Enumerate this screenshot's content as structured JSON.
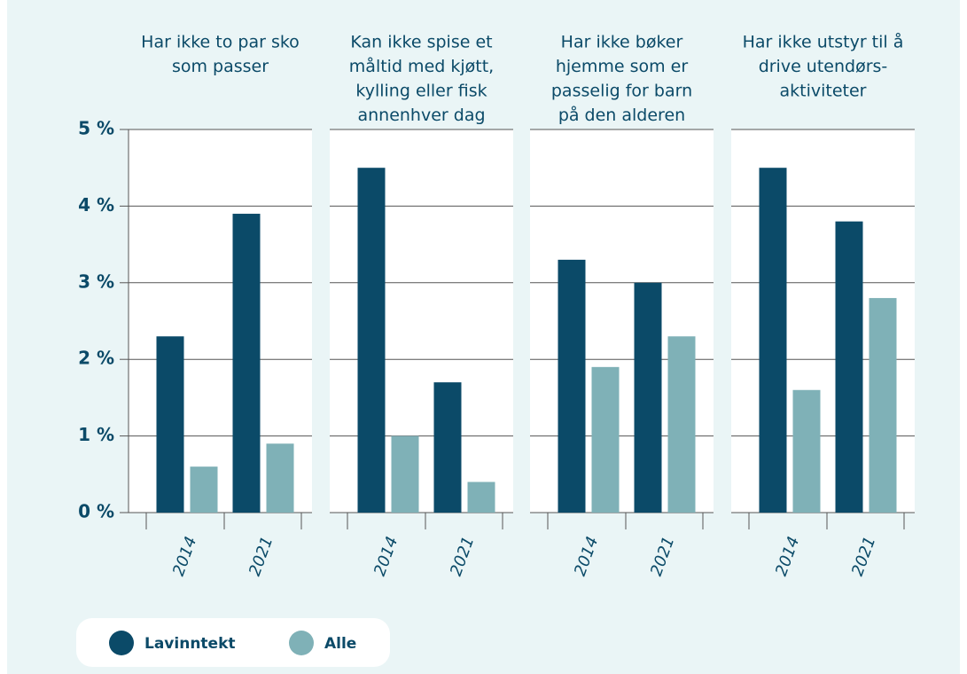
{
  "chart_data": [
    {
      "type": "bar",
      "title": [
        "Har ikke to par sko",
        "som passer"
      ],
      "categories": [
        "2014",
        "2021"
      ],
      "series": [
        {
          "name": "Lavinntekt",
          "color": "#0b4a68",
          "values": [
            2.3,
            3.9
          ]
        },
        {
          "name": "Alle",
          "color": "#7fb1b7",
          "values": [
            0.6,
            0.9
          ]
        }
      ],
      "ylim": [
        0,
        5
      ],
      "yticks": [
        {
          "value": 0,
          "label": "0 %"
        },
        {
          "value": 1,
          "label": "1 %"
        },
        {
          "value": 2,
          "label": "2 %"
        },
        {
          "value": 3,
          "label": "3 %"
        },
        {
          "value": 4,
          "label": "4 %"
        },
        {
          "value": 5,
          "label": "5 %"
        }
      ],
      "grid": true,
      "legend": "bottom"
    },
    {
      "type": "bar",
      "title": [
        "Kan ikke spise et",
        "måltid med kjøtt,",
        "kylling eller fisk",
        "annenhver dag"
      ],
      "categories": [
        "2014",
        "2021"
      ],
      "series": [
        {
          "name": "Lavinntekt",
          "color": "#0b4a68",
          "values": [
            4.5,
            1.7
          ]
        },
        {
          "name": "Alle",
          "color": "#7fb1b7",
          "values": [
            1.0,
            0.4
          ]
        }
      ],
      "ylim": [
        0,
        5
      ],
      "yticks": [
        {
          "value": 0,
          "label": "0 %"
        },
        {
          "value": 1,
          "label": "1 %"
        },
        {
          "value": 2,
          "label": "2 %"
        },
        {
          "value": 3,
          "label": "3 %"
        },
        {
          "value": 4,
          "label": "4 %"
        },
        {
          "value": 5,
          "label": "5 %"
        }
      ],
      "grid": true
    },
    {
      "type": "bar",
      "title": [
        "Har ikke bøker",
        "hjemme som er",
        "passelig for barn",
        "på den alderen"
      ],
      "categories": [
        "2014",
        "2021"
      ],
      "series": [
        {
          "name": "Lavinntekt",
          "color": "#0b4a68",
          "values": [
            3.3,
            3.0
          ]
        },
        {
          "name": "Alle",
          "color": "#7fb1b7",
          "values": [
            1.9,
            2.3
          ]
        }
      ],
      "ylim": [
        0,
        5
      ],
      "yticks": [
        {
          "value": 0,
          "label": "0 %"
        },
        {
          "value": 1,
          "label": "1 %"
        },
        {
          "value": 2,
          "label": "2 %"
        },
        {
          "value": 3,
          "label": "3 %"
        },
        {
          "value": 4,
          "label": "4 %"
        },
        {
          "value": 5,
          "label": "5 %"
        }
      ],
      "grid": true
    },
    {
      "type": "bar",
      "title": [
        "Har ikke utstyr til å",
        "drive utendørs-",
        "aktiviteter"
      ],
      "categories": [
        "2014",
        "2021"
      ],
      "series": [
        {
          "name": "Lavinntekt",
          "color": "#0b4a68",
          "values": [
            4.5,
            3.8
          ]
        },
        {
          "name": "Alle",
          "color": "#7fb1b7",
          "values": [
            1.6,
            2.8
          ]
        }
      ],
      "ylim": [
        0,
        5
      ],
      "yticks": [
        {
          "value": 0,
          "label": "0 %"
        },
        {
          "value": 1,
          "label": "1 %"
        },
        {
          "value": 2,
          "label": "2 %"
        },
        {
          "value": 3,
          "label": "3 %"
        },
        {
          "value": 4,
          "label": "4 %"
        },
        {
          "value": 5,
          "label": "5 %"
        }
      ],
      "grid": true
    }
  ]
}
